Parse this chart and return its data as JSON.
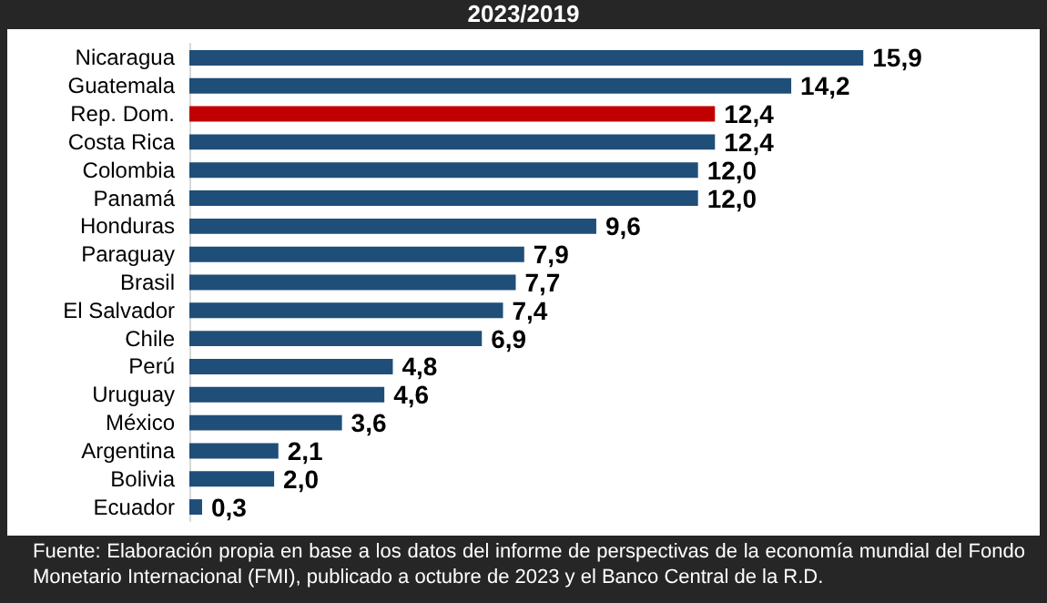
{
  "chart_data": {
    "type": "bar",
    "orientation": "horizontal",
    "title": "2023/2019",
    "categories": [
      "Nicaragua",
      "Guatemala",
      "Rep. Dom.",
      "Costa Rica",
      "Colombia",
      "Panamá",
      "Honduras",
      "Paraguay",
      "Brasil",
      "El Salvador",
      "Chile",
      "Perú",
      "Uruguay",
      "México",
      "Argentina",
      "Bolivia",
      "Ecuador"
    ],
    "values": [
      15.9,
      14.2,
      12.4,
      12.4,
      12.0,
      12.0,
      9.6,
      7.9,
      7.7,
      7.4,
      6.9,
      4.8,
      4.6,
      3.6,
      2.1,
      2.0,
      0.3
    ],
    "value_labels": [
      "15,9",
      "14,2",
      "12,4",
      "12,4",
      "12,0",
      "12,0",
      "9,6",
      "7,9",
      "7,7",
      "7,4",
      "6,9",
      "4,8",
      "4,6",
      "3,6",
      "2,1",
      "2,0",
      "0,3"
    ],
    "colors": [
      "#1f4e79",
      "#1f4e79",
      "#c00000",
      "#1f4e79",
      "#1f4e79",
      "#1f4e79",
      "#1f4e79",
      "#1f4e79",
      "#1f4e79",
      "#1f4e79",
      "#1f4e79",
      "#1f4e79",
      "#1f4e79",
      "#1f4e79",
      "#1f4e79",
      "#1f4e79",
      "#1f4e79"
    ],
    "annotations": [
      "Fuente: Elaboración propia en base a los datos del informe de perspectivas de la economía mundial del Fondo Monetario Internacional (FMI), publicado a octubre de 2023 y el Banco Central de la R.D."
    ],
    "tick_labels": "y"
  }
}
